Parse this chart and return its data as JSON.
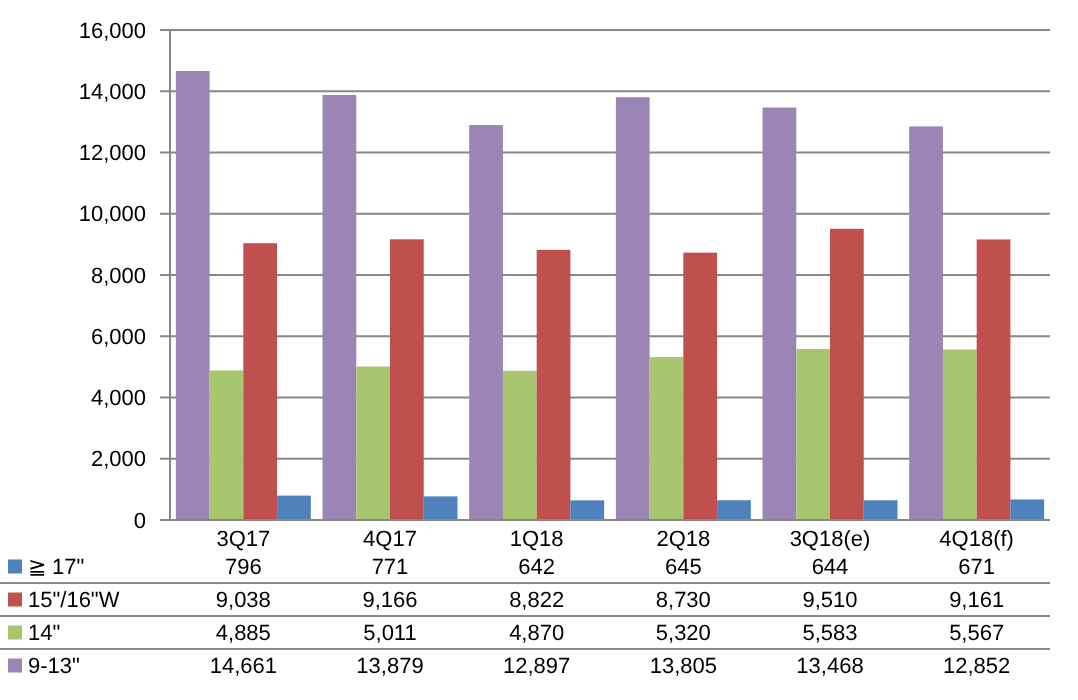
{
  "chart_data": {
    "type": "bar",
    "categories": [
      "3Q17",
      "4Q17",
      "1Q18",
      "2Q18",
      "3Q18(e)",
      "4Q18(f)"
    ],
    "series": [
      {
        "name": "9-13\"",
        "color": "#9a85b5",
        "values": [
          14661,
          13879,
          12897,
          13805,
          13468,
          12852
        ],
        "value_labels": [
          "14,661",
          "13,879",
          "12,897",
          "13,805",
          "13,468",
          "12,852"
        ]
      },
      {
        "name": "14\"",
        "color": "#a8c56f",
        "values": [
          4885,
          5011,
          4870,
          5320,
          5583,
          5567
        ],
        "value_labels": [
          "4,885",
          "5,011",
          "4,870",
          "5,320",
          "5,583",
          "5,567"
        ]
      },
      {
        "name": "15\"/16\"W",
        "color": "#c0504d",
        "values": [
          9038,
          9166,
          8822,
          8730,
          9510,
          9161
        ],
        "value_labels": [
          "9,038",
          "9,166",
          "8,822",
          "8,730",
          "9,510",
          "9,161"
        ]
      },
      {
        "name": "≧ 17\"",
        "color": "#4f81bd",
        "values": [
          796,
          771,
          642,
          645,
          644,
          671
        ],
        "value_labels": [
          "796",
          "771",
          "642",
          "645",
          "644",
          "671"
        ]
      }
    ],
    "ylim": [
      0,
      16000
    ],
    "yticks": [
      {
        "value": 0,
        "label": "0"
      },
      {
        "value": 2000,
        "label": "2,000"
      },
      {
        "value": 4000,
        "label": "4,000"
      },
      {
        "value": 6000,
        "label": "6,000"
      },
      {
        "value": 8000,
        "label": "8,000"
      },
      {
        "value": 10000,
        "label": "10,000"
      },
      {
        "value": 12000,
        "label": "12,000"
      },
      {
        "value": 14000,
        "label": "14,000"
      },
      {
        "value": 16000,
        "label": "16,000"
      }
    ],
    "grid": true,
    "legend": "bottom left"
  }
}
